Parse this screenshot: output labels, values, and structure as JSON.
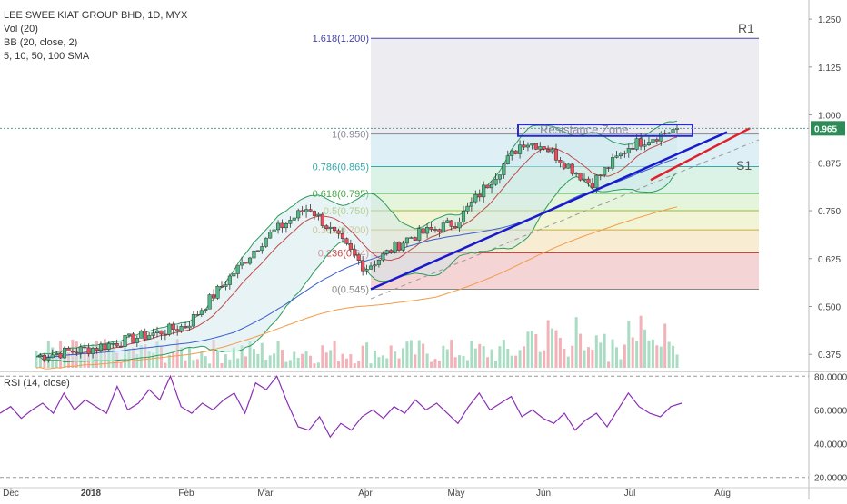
{
  "legend": {
    "symbol": "LEE SWEE KIAT GROUP BHD, 1D, MYX",
    "volume": "Vol (20)",
    "bb": "BB (20, close, 2)",
    "sma": "5, 10, 50, 100 SMA"
  },
  "rsi_legend": "RSI (14, close)",
  "annotations": {
    "r1": "R1",
    "s1": "S1",
    "resistance_zone": "Resistance Zone"
  },
  "colors": {
    "up": "#53b987",
    "down": "#eb4d5c",
    "fib_top": "#d4cff5",
    "trendline_blue": "#1a1acc",
    "trendline_red": "#e0202a",
    "rsi": "#8a2fb5"
  },
  "chart_data": [
    {
      "type": "candlestick",
      "ylim": [
        0.34,
        1.3
      ],
      "y_ticks": [
        0.375,
        0.5,
        0.625,
        0.75,
        0.875,
        1.0,
        1.125,
        1.25
      ],
      "y_tick_labels": [
        "0.375",
        "0.500",
        "0.625",
        "0.750",
        "0.875",
        "1.000",
        "1.125",
        "1.250"
      ],
      "x_labels": [
        "Dec",
        "2018",
        "Feb",
        "Mar",
        "Apr",
        "May",
        "Jun",
        "Jul",
        "Aug"
      ],
      "last_price": 0.965,
      "last_price_label": "0.965",
      "fibonacci": [
        {
          "ratio": "0",
          "level": 0.545,
          "label": "0(0.545)"
        },
        {
          "ratio": "0.236",
          "level": 0.64,
          "label": "0.236(0.64)"
        },
        {
          "ratio": "0.382",
          "level": 0.7,
          "label": "0.382(0.700)"
        },
        {
          "ratio": "0.5",
          "level": 0.75,
          "label": "0.5(0.750)"
        },
        {
          "ratio": "0.618",
          "level": 0.795,
          "label": "0.618(0.795)"
        },
        {
          "ratio": "0.786",
          "level": 0.865,
          "label": "0.786(0.865)"
        },
        {
          "ratio": "1",
          "level": 0.95,
          "label": "1(0.950)"
        },
        {
          "ratio": "1.618",
          "level": 1.2,
          "label": "1.618(1.200)"
        }
      ],
      "resistance_zone": [
        0.945,
        0.975
      ],
      "price_keypoints": [
        {
          "x": "Dec",
          "close": 0.36
        },
        {
          "x": "2018",
          "close": 0.39
        },
        {
          "x": "Feb",
          "close": 0.45
        },
        {
          "x": "Mar",
          "close": 0.68
        },
        {
          "x": "Mar-mid",
          "close": 0.76
        },
        {
          "x": "Apr",
          "close": 0.6
        },
        {
          "x": "Apr-mid",
          "close": 0.68
        },
        {
          "x": "May",
          "close": 0.72
        },
        {
          "x": "May-end",
          "close": 0.93
        },
        {
          "x": "Jun",
          "close": 0.92
        },
        {
          "x": "Jun-mid",
          "close": 0.82
        },
        {
          "x": "Jul",
          "close": 0.92
        },
        {
          "x": "Jul-mid",
          "close": 0.965
        }
      ]
    },
    {
      "type": "line",
      "name": "RSI (14, close)",
      "ylim": [
        15,
        85
      ],
      "y_ticks": [
        20,
        40,
        60,
        80
      ],
      "y_tick_labels": [
        "20.0000",
        "40.0000",
        "60.0000",
        "80.0000"
      ],
      "x_labels": [
        "Dec",
        "2018",
        "Feb",
        "Mar",
        "Apr",
        "May",
        "Jun",
        "Jul",
        "Aug"
      ],
      "series": [
        {
          "values": [
            58,
            62,
            55,
            60,
            64,
            58,
            70,
            60,
            66,
            62,
            58,
            74,
            60,
            64,
            72,
            66,
            80,
            62,
            58,
            64,
            60,
            66,
            70,
            58,
            76,
            72,
            80,
            64,
            50,
            48,
            56,
            44,
            52,
            48,
            56,
            60,
            55,
            62,
            58,
            66,
            60,
            64,
            58,
            52,
            62,
            70,
            60,
            64,
            68,
            56,
            60,
            55,
            52,
            58,
            48,
            54,
            58,
            50,
            60,
            70,
            62,
            58,
            56,
            62,
            64
          ]
        }
      ]
    }
  ]
}
